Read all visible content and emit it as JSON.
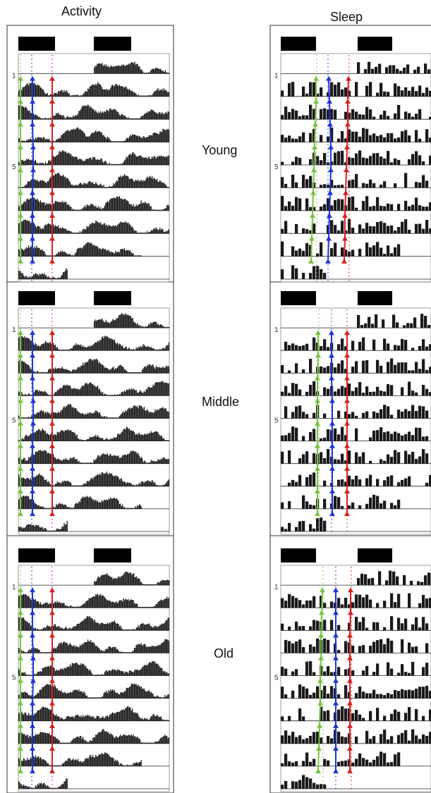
{
  "column_titles": {
    "activity": "Activity",
    "sleep": "Sleep"
  },
  "group_labels": {
    "young": "Young",
    "middle": "Middle",
    "old": "Old"
  },
  "day_ticks": [
    "1",
    "5"
  ],
  "colors": {
    "bars": "#1a1a1a",
    "bar_edge": "#555555",
    "green_marker": "#7ac143",
    "blue_marker": "#1f35d6",
    "red_marker": "#d62020",
    "panel_border": "#333333",
    "inner_border": "#888888"
  },
  "groups": [
    "young",
    "middle",
    "old"
  ],
  "columns": [
    "activity",
    "sleep"
  ],
  "rows_per_actogram": 10
}
